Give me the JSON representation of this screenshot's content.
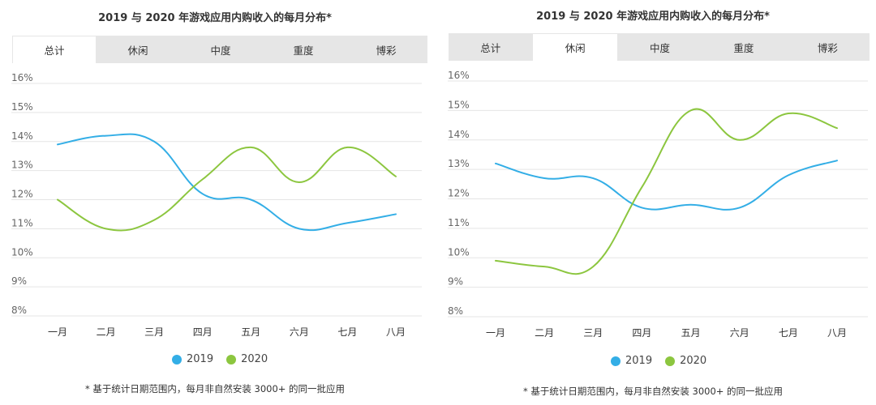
{
  "colors": {
    "s2019": "#33aee6",
    "s2020": "#8cc63f",
    "grid": "#e5e5e5",
    "tabbar": "#e6e6e6"
  },
  "legend_labels": [
    "2019",
    "2020"
  ],
  "footnote": "* 基于统计日期范围内，每月非自然安装 3000+ 的同一批应用",
  "chart_data": [
    {
      "type": "line",
      "title": "2019 与 2020 年游戏应用内购收入的每月分布*",
      "tabs": [
        "总计",
        "休闲",
        "中度",
        "重度",
        "博彩"
      ],
      "active_tab": 0,
      "categories": [
        "一月",
        "二月",
        "三月",
        "四月",
        "五月",
        "六月",
        "七月",
        "八月"
      ],
      "y_ticks": [
        "16%",
        "15%",
        "14%",
        "13%",
        "12%",
        "11%",
        "10%",
        "9%",
        "8%"
      ],
      "ylim": [
        8,
        16
      ],
      "grid": true,
      "legend_position": "bottom",
      "series": [
        {
          "name": "2019",
          "values": [
            13.9,
            14.2,
            14.0,
            12.2,
            12.0,
            11.0,
            11.2,
            11.5
          ]
        },
        {
          "name": "2020",
          "values": [
            12.0,
            11.0,
            11.3,
            12.7,
            13.8,
            12.6,
            13.8,
            12.8
          ]
        }
      ]
    },
    {
      "type": "line",
      "title": "2019 与 2020 年游戏应用内购收入的每月分布*",
      "tabs": [
        "总计",
        "休闲",
        "中度",
        "重度",
        "博彩"
      ],
      "active_tab": 1,
      "categories": [
        "一月",
        "二月",
        "三月",
        "四月",
        "五月",
        "六月",
        "七月",
        "八月"
      ],
      "y_ticks": [
        "16%",
        "15%",
        "14%",
        "13%",
        "12%",
        "11%",
        "10%",
        "9%",
        "8%"
      ],
      "ylim": [
        8,
        16
      ],
      "grid": true,
      "legend_position": "bottom",
      "series": [
        {
          "name": "2019",
          "values": [
            13.2,
            12.7,
            12.7,
            11.7,
            11.8,
            11.7,
            12.8,
            13.3
          ]
        },
        {
          "name": "2020",
          "values": [
            9.9,
            9.7,
            9.7,
            12.4,
            15.0,
            14.0,
            14.9,
            14.4
          ]
        }
      ]
    }
  ]
}
